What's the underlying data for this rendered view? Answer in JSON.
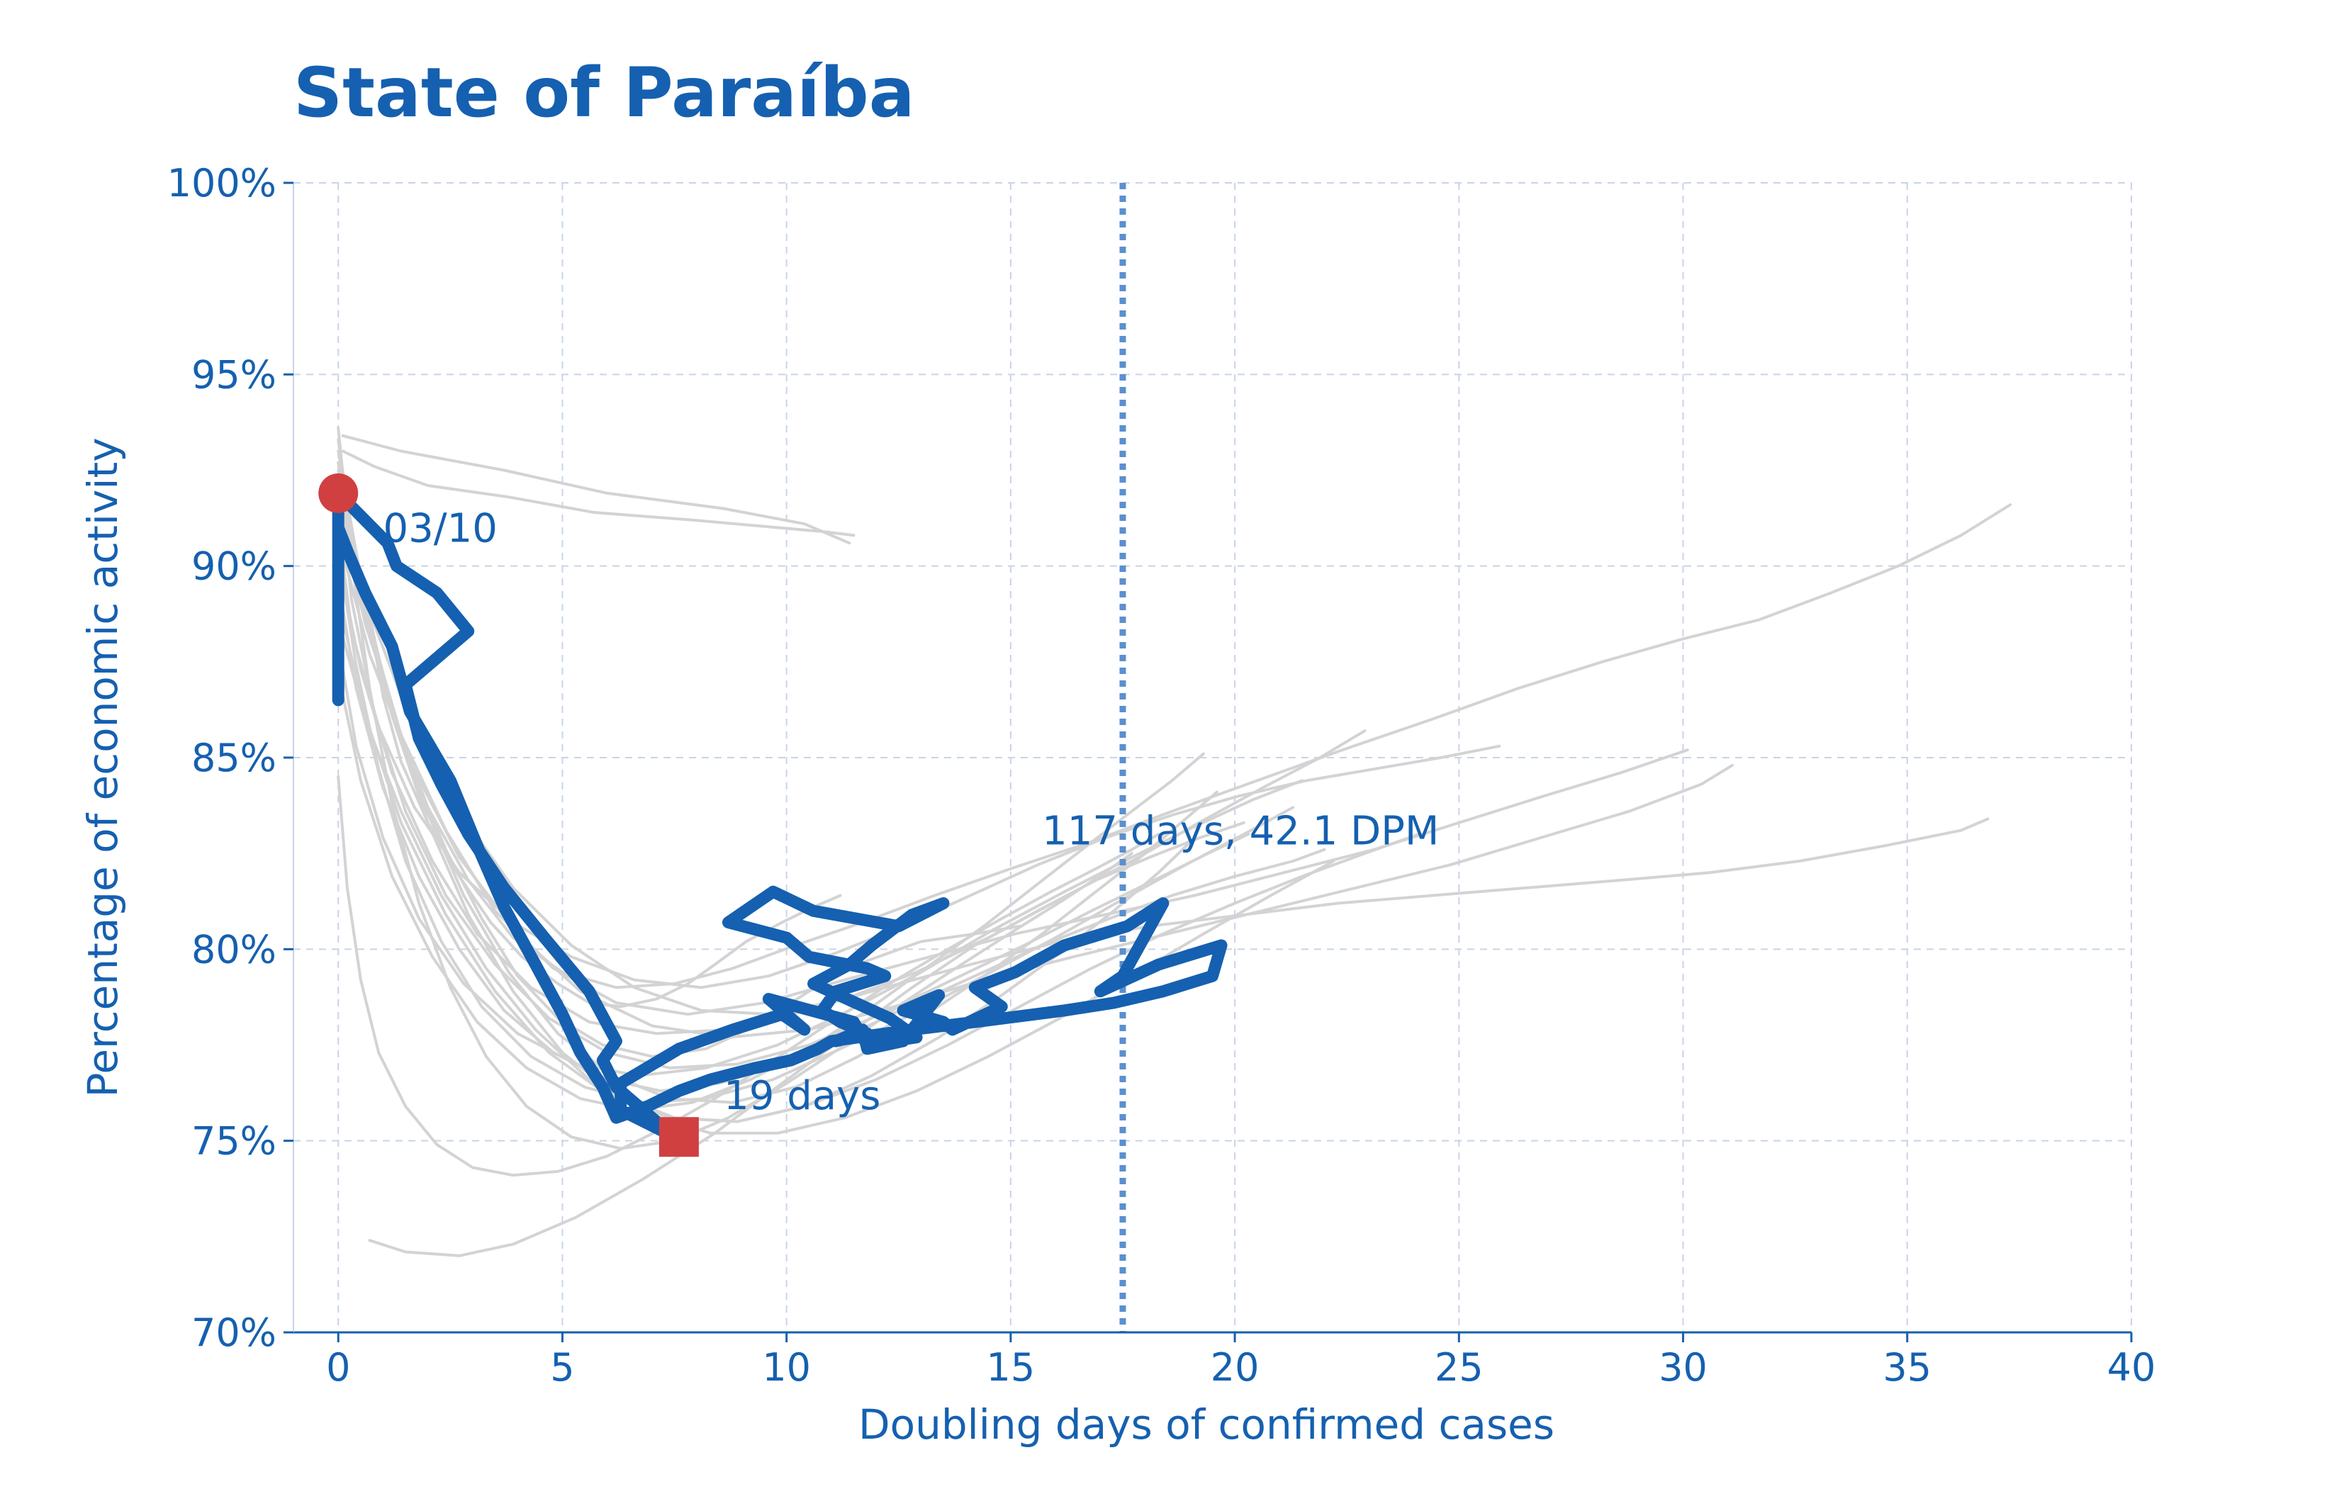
{
  "chart_data": {
    "type": "line",
    "title": "State of Paraíba",
    "xlabel": "Doubling days of confirmed cases",
    "ylabel": "Percentage of economic activity",
    "xlim": [
      -1,
      40
    ],
    "ylim": [
      70,
      100
    ],
    "xticks": [
      0,
      5,
      10,
      15,
      20,
      25,
      30,
      35,
      40
    ],
    "xtick_labels": [
      "0",
      "5",
      "10",
      "15",
      "20",
      "25",
      "30",
      "35",
      "40"
    ],
    "yticks": [
      70,
      75,
      80,
      85,
      90,
      95,
      100
    ],
    "ytick_labels": [
      "70%",
      "75%",
      "80%",
      "85%",
      "90%",
      "95%",
      "100%"
    ],
    "grid": true,
    "reference_line": {
      "axis": "x",
      "value": 17.5,
      "style": "dotted"
    },
    "colors": {
      "highlight": "#1560b0",
      "background_series": "#d3d3d3",
      "marker": "#d04040",
      "grid": "#c8d4e8",
      "reference_line": "#5b8fd0"
    },
    "annotations": [
      {
        "text": "03/10",
        "x": 1.0,
        "y": 91.0
      },
      {
        "text": "19 days",
        "x": 8.6,
        "y": 76.2
      },
      {
        "text": "117 days, 42.1 DPM",
        "x": 15.7,
        "y": 83.1
      }
    ],
    "start_marker": {
      "x": 0.0,
      "y": 91.9,
      "shape": "circle"
    },
    "end_marker": {
      "x": 7.6,
      "y": 75.1,
      "shape": "square"
    },
    "highlight_series": {
      "name": "State of Paraíba",
      "x": [
        0.0,
        0.0,
        0.0,
        0.0,
        1.1,
        1.3,
        2.2,
        2.9,
        1.5,
        1.8,
        2.3,
        2.9,
        3.7,
        4.6,
        5.6,
        6.2,
        5.9,
        6.2,
        7.5,
        6.3,
        6.3,
        7.6,
        8.8,
        9.9,
        10.4,
        9.6,
        11.5,
        11.8,
        12.9,
        12.3,
        10.6,
        11.4,
        11.9,
        12.8,
        13.5,
        12.5,
        10.6,
        9.7,
        8.7,
        10.0,
        10.5,
        11.8,
        12.2,
        11.1,
        10.8,
        11.2,
        11.8,
        11.1,
        11.7,
        11.8,
        12.6,
        13.0,
        13.4,
        12.6,
        13.5,
        13.7,
        14.8,
        14.2,
        15.1,
        16.2,
        17.6,
        18.4,
        17.5,
        17.0,
        18.3,
        19.7,
        19.5,
        18.4,
        17.3,
        16.2,
        14.2,
        12.8,
        11.0,
        10.7,
        10.1,
        9.3,
        8.3,
        7.6,
        6.9,
        6.2,
        5.9,
        5.4,
        5.0,
        4.4,
        3.7,
        3.1,
        2.5,
        1.6,
        1.2,
        0.6,
        0.2,
        0.0,
        0.0
      ],
      "y": [
        86.5,
        88.3,
        90.1,
        91.9,
        90.6,
        90.0,
        89.3,
        88.3,
        86.9,
        85.5,
        84.3,
        83.0,
        81.6,
        80.3,
        78.9,
        77.6,
        77.1,
        76.4,
        75.1,
        75.8,
        76.5,
        77.4,
        77.9,
        78.3,
        77.9,
        78.7,
        78.1,
        77.5,
        77.7,
        78.2,
        79.1,
        79.6,
        80.1,
        80.9,
        81.2,
        80.6,
        81.0,
        81.5,
        80.7,
        80.3,
        79.8,
        79.5,
        79.3,
        78.9,
        78.4,
        78.1,
        77.8,
        77.6,
        77.9,
        77.4,
        77.6,
        78.2,
        78.8,
        78.4,
        78.1,
        77.9,
        78.5,
        79.0,
        79.4,
        80.1,
        80.6,
        81.2,
        79.3,
        78.9,
        79.6,
        80.1,
        79.3,
        78.9,
        78.6,
        78.4,
        78.1,
        77.9,
        77.6,
        77.4,
        77.1,
        76.9,
        76.6,
        76.3,
        75.9,
        75.6,
        76.4,
        77.3,
        78.3,
        79.6,
        81.1,
        82.7,
        84.4,
        86.2,
        87.9,
        89.3,
        90.4,
        91.0,
        91.9
      ]
    },
    "background_series": [
      {
        "x": [
          0.1,
          0.8,
          2.0,
          3.8,
          5.7,
          7.9,
          10.8,
          11.5
        ],
        "y": [
          93.0,
          92.6,
          92.1,
          91.8,
          91.4,
          91.2,
          90.9,
          90.8
        ]
      },
      {
        "x": [
          0.1,
          1.4,
          3.7,
          6.0,
          8.6,
          10.4,
          11.4
        ],
        "y": [
          93.4,
          93.0,
          92.5,
          91.9,
          91.5,
          91.1,
          90.6
        ]
      },
      {
        "x": [
          0.0,
          0.3,
          0.7,
          1.0,
          1.4,
          2.0,
          2.7,
          3.4,
          4.1,
          4.9,
          5.6,
          6.3,
          7.1,
          7.8,
          8.4,
          9.1,
          9.9,
          10.6,
          11.2
        ],
        "y": [
          93.3,
          90.8,
          88.6,
          86.6,
          84.9,
          83.3,
          81.9,
          80.7,
          79.8,
          79.1,
          78.6,
          78.5,
          78.7,
          79.1,
          79.6,
          80.2,
          80.7,
          81.1,
          81.4
        ]
      },
      {
        "x": [
          0.0,
          0.4,
          1.0,
          1.6,
          2.4,
          3.2,
          4.0,
          4.9,
          5.9,
          7.0,
          8.2,
          9.3,
          10.5,
          11.8,
          13.0,
          14.2,
          15.2
        ],
        "y": [
          92.5,
          89.9,
          87.2,
          84.8,
          82.6,
          80.8,
          79.3,
          78.2,
          77.5,
          77.2,
          77.4,
          78.0,
          78.9,
          79.7,
          80.2,
          80.4,
          80.6
        ]
      },
      {
        "x": [
          0.0,
          0.5,
          1.2,
          2.0,
          2.9,
          3.9,
          5.0,
          6.2,
          7.5,
          8.8,
          10.2,
          11.7,
          13.3,
          15.0,
          16.8,
          18.6,
          20.5,
          22.4,
          24.4,
          26.3,
          28.2,
          30.0,
          31.7,
          33.3,
          34.8,
          36.2,
          37.3
        ],
        "y": [
          92.0,
          89.0,
          86.2,
          83.7,
          81.8,
          80.3,
          79.4,
          79.0,
          79.1,
          79.5,
          80.1,
          80.7,
          81.4,
          82.1,
          82.8,
          83.6,
          84.4,
          85.2,
          86.0,
          86.8,
          87.5,
          88.1,
          88.6,
          89.3,
          90.0,
          90.8,
          91.6
        ]
      },
      {
        "x": [
          0.0,
          0.6,
          1.4,
          2.4,
          3.5,
          4.8,
          6.2,
          7.8,
          9.5,
          11.3,
          13.2,
          15.1,
          17.1,
          19.1,
          21.1,
          23.1,
          25.0,
          26.9,
          28.6,
          30.1
        ],
        "y": [
          91.5,
          88.5,
          85.6,
          83.1,
          81.0,
          79.5,
          78.6,
          78.3,
          78.6,
          79.2,
          79.8,
          80.4,
          80.9,
          81.4,
          82.0,
          82.6,
          83.3,
          84.0,
          84.6,
          85.2
        ]
      },
      {
        "x": [
          0.0,
          0.7,
          1.6,
          2.7,
          4.0,
          5.4,
          7.0,
          8.7,
          10.5,
          12.4,
          14.4,
          16.4,
          18.5,
          20.6,
          22.7,
          24.8,
          26.8,
          28.8,
          30.4,
          31.1
        ],
        "y": [
          90.8,
          87.7,
          84.9,
          82.4,
          80.4,
          78.9,
          78.0,
          77.7,
          77.9,
          78.5,
          79.2,
          79.8,
          80.4,
          81.0,
          81.6,
          82.2,
          82.9,
          83.6,
          84.3,
          84.8
        ]
      },
      {
        "x": [
          0.0,
          0.5,
          1.2,
          2.1,
          3.1,
          4.3,
          5.6,
          7.1,
          8.7,
          10.4,
          12.2,
          14.1,
          16.1,
          18.1,
          20.2,
          22.3,
          24.4,
          26.5,
          28.6,
          30.6,
          32.6,
          34.5,
          36.2,
          36.8
        ],
        "y": [
          90.2,
          87.3,
          84.6,
          82.3,
          80.4,
          79.0,
          78.1,
          77.8,
          77.9,
          78.4,
          79.0,
          79.6,
          80.2,
          80.6,
          80.9,
          81.2,
          81.4,
          81.6,
          81.8,
          82.0,
          82.3,
          82.7,
          83.1,
          83.4
        ]
      },
      {
        "x": [
          0.0,
          0.3,
          0.9,
          1.7,
          2.7,
          3.9,
          5.2,
          6.6,
          8.1,
          9.6,
          11.1,
          12.6,
          14.1,
          15.6,
          17.1,
          18.6,
          20.1,
          21.6,
          23.1,
          24.6,
          25.9
        ],
        "y": [
          91.1,
          88.3,
          85.8,
          83.7,
          82.0,
          80.7,
          79.8,
          79.2,
          79.0,
          79.3,
          79.9,
          80.6,
          81.4,
          82.2,
          82.9,
          83.5,
          84.0,
          84.4,
          84.7,
          85.0,
          85.3
        ]
      },
      {
        "x": [
          0.0,
          0.4,
          1.0,
          1.8,
          2.7,
          3.7,
          4.8,
          6.0,
          7.2,
          8.5,
          9.9,
          11.3,
          12.7,
          14.2,
          15.7,
          17.2,
          18.6,
          20.0,
          21.3,
          22.0
        ],
        "y": [
          89.6,
          86.8,
          84.2,
          81.9,
          80.0,
          78.4,
          77.3,
          76.6,
          76.3,
          76.5,
          77.0,
          77.7,
          78.5,
          79.3,
          80.1,
          80.8,
          81.4,
          81.9,
          82.3,
          82.6
        ]
      },
      {
        "x": [
          0.0,
          0.5,
          1.2,
          2.0,
          2.9,
          3.9,
          5.0,
          6.2,
          7.5,
          8.9,
          10.4,
          12.0,
          13.6,
          15.2,
          16.8,
          18.4,
          20.0,
          21.5,
          22.9,
          24.1
        ],
        "y": [
          92.7,
          89.3,
          86.1,
          83.3,
          80.9,
          78.9,
          77.3,
          76.2,
          75.6,
          75.5,
          75.9,
          76.6,
          77.5,
          78.5,
          79.5,
          80.4,
          81.2,
          81.9,
          82.5,
          83.0
        ]
      },
      {
        "x": [
          0.0,
          0.3,
          0.7,
          1.2,
          1.8,
          2.5,
          3.3,
          4.2,
          5.2,
          6.3,
          7.5,
          8.7,
          10.0,
          11.3,
          12.6,
          13.9,
          15.1,
          16.2,
          17.1,
          17.7
        ],
        "y": [
          93.6,
          90.1,
          86.8,
          83.8,
          81.2,
          79.0,
          77.2,
          75.9,
          75.1,
          74.8,
          75.0,
          75.6,
          76.5,
          77.5,
          78.6,
          79.6,
          80.5,
          81.3,
          82.0,
          82.5
        ]
      },
      {
        "x": [
          0.0,
          0.6,
          1.4,
          2.3,
          3.3,
          4.4,
          5.6,
          6.9,
          8.3,
          9.8,
          11.3,
          12.9,
          14.5,
          16.1,
          17.7,
          19.3,
          20.8,
          22.2
        ],
        "y": [
          88.6,
          86.0,
          83.6,
          81.4,
          79.5,
          77.9,
          76.6,
          75.7,
          75.2,
          75.2,
          75.6,
          76.3,
          77.2,
          78.2,
          79.3,
          80.4,
          81.4,
          82.3
        ]
      },
      {
        "x": [
          0.0,
          0.2,
          0.5,
          0.9,
          1.5,
          2.2,
          3.0,
          3.9,
          4.9,
          6.0,
          7.2,
          8.4,
          9.7,
          11.0,
          12.3,
          13.6,
          14.8,
          15.9,
          16.9,
          17.7,
          18.3
        ],
        "y": [
          84.5,
          81.6,
          79.2,
          77.3,
          75.9,
          74.9,
          74.3,
          74.1,
          74.2,
          74.6,
          75.3,
          76.1,
          77.1,
          78.1,
          79.1,
          80.0,
          80.8,
          81.5,
          82.1,
          82.6,
          83.0
        ]
      },
      {
        "x": [
          0.7,
          1.5,
          2.7,
          3.9,
          5.3,
          6.8,
          8.4,
          9.9,
          11.4,
          12.8,
          14.2,
          15.6,
          16.9,
          18.1,
          19.2,
          20.2
        ],
        "y": [
          72.4,
          72.1,
          72.0,
          72.3,
          73.0,
          74.0,
          75.2,
          76.5,
          77.8,
          79.0,
          80.1,
          81.0,
          81.8,
          82.4,
          82.9,
          83.3
        ]
      },
      {
        "x": [
          0.0,
          0.5,
          1.2,
          2.1,
          3.1,
          4.2,
          5.4,
          6.6,
          7.9,
          9.2,
          10.5,
          11.8,
          13.1,
          14.4,
          15.6,
          16.7,
          17.7,
          18.6,
          19.3
        ],
        "y": [
          87.2,
          84.4,
          81.9,
          79.8,
          78.1,
          76.9,
          76.1,
          75.8,
          76.0,
          76.6,
          77.4,
          78.4,
          79.5,
          80.6,
          81.7,
          82.7,
          83.6,
          84.4,
          85.1
        ]
      },
      {
        "x": [
          0.0,
          0.7,
          1.6,
          2.7,
          3.9,
          5.2,
          6.6,
          8.1,
          9.7,
          11.3,
          12.9,
          14.5,
          16.1,
          17.7,
          19.2,
          20.6,
          21.9,
          22.9
        ],
        "y": [
          91.9,
          88.8,
          86.0,
          83.6,
          81.6,
          80.1,
          79.0,
          78.4,
          78.3,
          78.7,
          79.4,
          80.3,
          81.3,
          82.3,
          83.3,
          84.2,
          85.0,
          85.7
        ]
      },
      {
        "x": [
          0.0,
          0.4,
          0.9,
          1.5,
          2.3,
          3.2,
          4.3,
          5.5,
          6.8,
          8.2,
          9.7,
          11.2,
          12.8,
          14.4,
          16.0,
          17.5,
          18.9,
          20.2,
          21.3
        ],
        "y": [
          90.4,
          87.4,
          84.7,
          82.3,
          80.2,
          78.5,
          77.2,
          76.4,
          76.0,
          76.1,
          76.6,
          77.4,
          78.3,
          79.3,
          80.3,
          81.3,
          82.2,
          83.0,
          83.7
        ]
      },
      {
        "x": [
          0.0,
          0.3,
          0.8,
          1.5,
          2.4,
          3.5,
          4.7,
          6.0,
          7.4,
          8.9,
          10.5,
          12.1,
          13.7,
          15.3,
          16.8,
          18.2,
          19.4,
          20.3
        ],
        "y": [
          92.2,
          89.1,
          86.2,
          83.6,
          81.4,
          79.6,
          78.2,
          77.3,
          76.9,
          77.0,
          77.5,
          78.3,
          79.2,
          80.1,
          81.0,
          81.8,
          82.5,
          83.0
        ]
      },
      {
        "x": [
          0.0,
          0.6,
          1.4,
          2.4,
          3.5,
          4.7,
          6.0,
          7.4,
          8.9,
          10.4,
          11.9,
          13.4,
          14.8,
          16.1,
          17.3,
          18.3,
          19.1
        ],
        "y": [
          89.1,
          86.1,
          83.3,
          80.9,
          78.9,
          77.3,
          76.2,
          75.6,
          75.5,
          75.9,
          76.7,
          77.7,
          78.8,
          79.9,
          81.0,
          82.0,
          82.9
        ]
      },
      {
        "x": [
          0.0,
          0.5,
          1.1,
          1.9,
          2.8,
          3.8,
          4.9,
          6.1,
          7.4,
          8.8,
          10.2,
          11.6,
          13.0,
          14.4,
          15.7,
          16.9,
          18.0,
          18.9,
          19.6
        ],
        "y": [
          93.0,
          89.7,
          86.6,
          83.8,
          81.4,
          79.4,
          77.8,
          76.7,
          76.1,
          76.0,
          76.4,
          77.2,
          78.2,
          79.3,
          80.4,
          81.5,
          82.5,
          83.4,
          84.1
        ]
      },
      {
        "x": [
          0.0,
          0.4,
          1.0,
          1.8,
          2.8,
          4.0,
          5.3,
          6.7,
          8.2,
          9.8,
          11.4,
          13.0,
          14.6,
          16.2,
          17.7,
          19.1,
          20.4,
          21.5
        ],
        "y": [
          88.0,
          85.3,
          82.9,
          80.8,
          79.1,
          77.8,
          77.0,
          76.7,
          76.9,
          77.5,
          78.4,
          79.4,
          80.5,
          81.5,
          82.4,
          83.2,
          83.9,
          84.4
        ]
      }
    ]
  }
}
